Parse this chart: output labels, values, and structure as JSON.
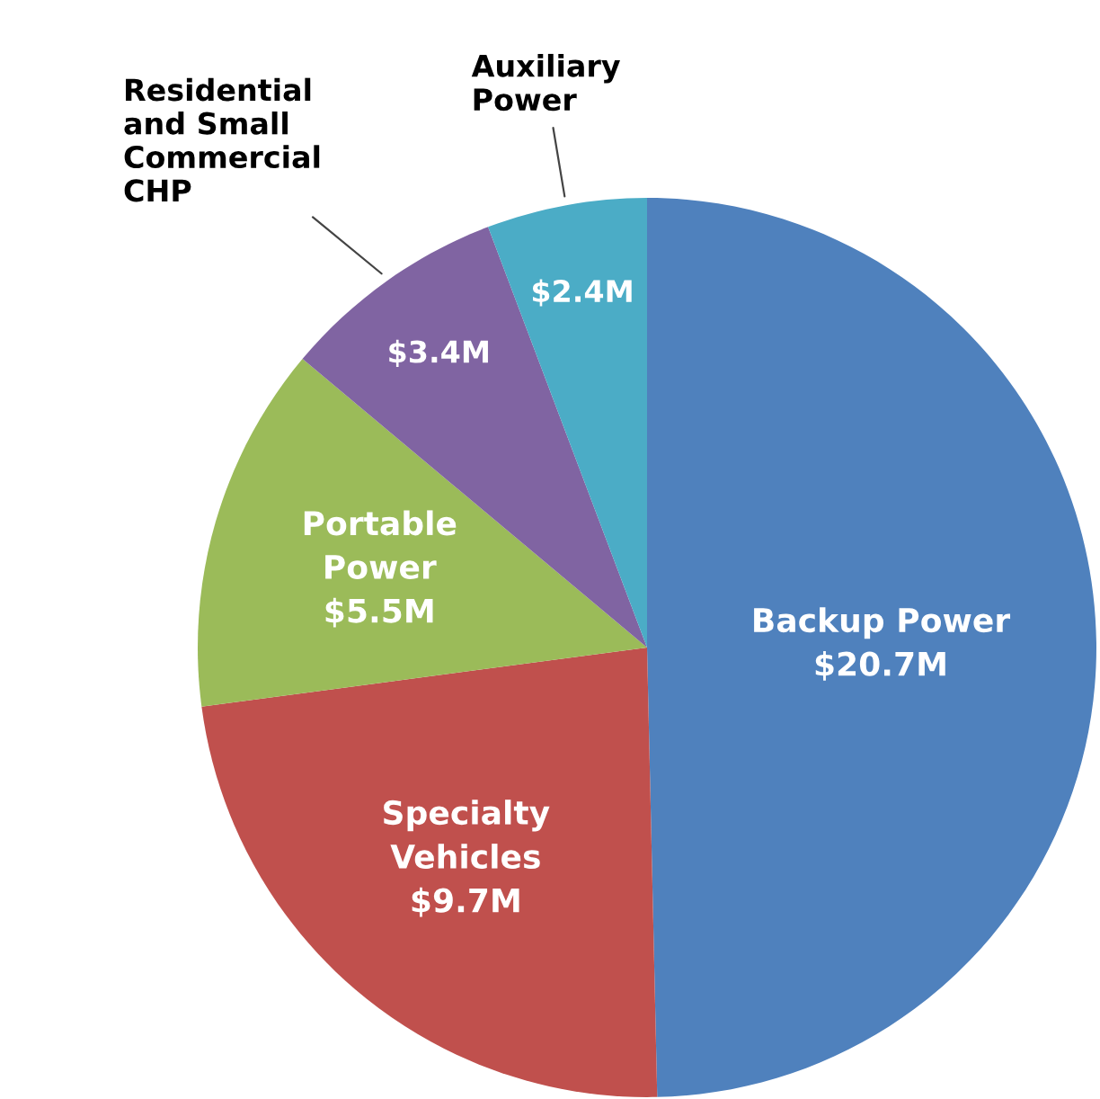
{
  "chart_data": {
    "type": "pie",
    "categories": [
      "Backup Power",
      "Specialty\nVehicles",
      "Portable\nPower",
      "Residential\nand Small\nCommercial\nCHP",
      "Auxiliary\nPower"
    ],
    "values": [
      20.7,
      9.7,
      5.5,
      3.4,
      2.4
    ],
    "value_labels": [
      "$20.7M",
      "$9.7M",
      "$5.5M",
      "$3.4M",
      "$2.4M"
    ],
    "colors": [
      "#4f81bd",
      "#c0504d",
      "#9bbb59",
      "#8064a2",
      "#4bacc6"
    ]
  }
}
